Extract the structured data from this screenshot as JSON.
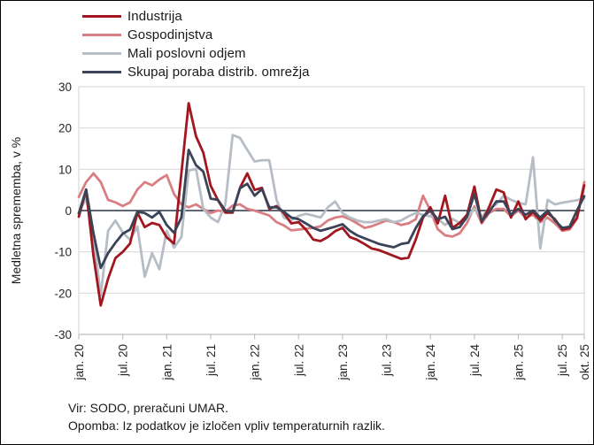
{
  "chart_data": {
    "type": "line",
    "title": "",
    "ylabel": "Medletna sprememba, v %",
    "ylim": [
      -30,
      30
    ],
    "y_ticks": [
      30,
      20,
      10,
      0,
      -10,
      -20,
      -30
    ],
    "grid": true,
    "grid_color": "#d9d9d9",
    "axis_color": "#bfbfbf",
    "zero_line_color": "#474f63",
    "legend_position": "top-left",
    "frequency": "monthly",
    "n_points": 70,
    "x_start_label": "jan. 20",
    "x_end_label": "okt. 25",
    "x_tick_positions": [
      0,
      6,
      12,
      18,
      24,
      30,
      36,
      42,
      48,
      54,
      60,
      66,
      69
    ],
    "x_tick_labels": [
      "jan. 20",
      "jul. 20",
      "jan. 21",
      "jul. 21",
      "jan. 22",
      "jul. 22",
      "jan. 23",
      "jul. 23",
      "jan. 24",
      "jul. 24",
      "jan. 25",
      "jul. 25",
      "okt. 25"
    ],
    "series": [
      {
        "name": "Industrija",
        "color": "#a2161f",
        "values": [
          -1.5,
          5,
          -11,
          -23,
          -16.5,
          -11.5,
          -10,
          -8,
          -0.5,
          -4,
          -3,
          -3.5,
          -6.5,
          -8,
          9,
          26,
          18,
          14,
          6,
          2.5,
          -0.5,
          -0.5,
          5.5,
          9,
          5,
          5.5,
          0.4,
          1.1,
          -0.6,
          -3.1,
          -2.8,
          -4.6,
          -7,
          -7.4,
          -6.4,
          -5,
          -4.2,
          -6.4,
          -7.1,
          -8.1,
          -9.2,
          -9.6,
          -10.3,
          -11,
          -11.7,
          -11.4,
          -7,
          -1.7,
          0.8,
          -3.1,
          3.6,
          -4.2,
          -3,
          -1,
          5.8,
          -2.8,
          0.8,
          5.1,
          4.4,
          -1.7,
          2.2,
          -2.1,
          -0.3,
          -2.4,
          -0.6,
          -2.1,
          -4.6,
          -4.2,
          -1.8,
          6.1
        ]
      },
      {
        "name": "Gospodinjstva",
        "color": "#d97e82",
        "values": [
          3.3,
          6.9,
          9,
          6.9,
          2.6,
          2,
          1.1,
          2,
          5.1,
          6.9,
          6.1,
          7.5,
          8.6,
          4,
          1.5,
          0.8,
          1.5,
          0.4,
          -0.6,
          0,
          -0.3,
          1.2,
          1.5,
          0.4,
          0,
          -0.6,
          -1.2,
          -2.8,
          -3.6,
          -4.8,
          -4.6,
          -4.4,
          -4.2,
          -3.8,
          -2.4,
          -1.7,
          -1.4,
          -2.1,
          -3.1,
          -4.2,
          -3.8,
          -3.1,
          -2.4,
          -2.8,
          -3.5,
          -3.1,
          -2.1,
          3.6,
          0,
          -4.5,
          -6,
          -6.3,
          -5.5,
          -3,
          1,
          -3.1,
          -0.6,
          0.4,
          0.4,
          -1.4,
          0,
          -1.7,
          -1,
          -2.8,
          -1.7,
          -3.1,
          -4.9,
          -4.6,
          -2,
          6.9
        ]
      },
      {
        "name": "Mali poslovni odjem",
        "color": "#b6bdc5",
        "values": [
          -0.5,
          3,
          -6,
          -20.6,
          -4.9,
          -2.4,
          -5.3,
          -7.1,
          -3.9,
          -16,
          -10.3,
          -14.2,
          -4.9,
          -9,
          -6.4,
          9.7,
          10.1,
          0.4,
          -1.7,
          -2.8,
          1.5,
          18.3,
          17.6,
          14.7,
          11.9,
          12.2,
          12.2,
          2.6,
          -1.7,
          -2.4,
          -1.3,
          -0.8,
          -1.2,
          -1.7,
          0.8,
          2.2,
          -0.6,
          -1.7,
          -2.4,
          -2.8,
          -2.8,
          -2.4,
          -2.1,
          -2.8,
          -2.4,
          -1.4,
          -0.6,
          -1,
          -1.4,
          -2,
          -3.5,
          -2,
          -3,
          -2,
          0.5,
          -1.5,
          0.5,
          1.5,
          3.6,
          2.6,
          1.9,
          1.5,
          12.9,
          -9.2,
          2.6,
          1.5,
          1.9,
          2.2,
          2.5,
          3
        ]
      },
      {
        "name": "Skupaj poraba distrib. omrežja",
        "color": "#3b4357",
        "values": [
          -0.7,
          5.1,
          -5.5,
          -13.9,
          -10.3,
          -7.8,
          -5.6,
          -4.6,
          -0.3,
          -0.6,
          -1.7,
          -0.3,
          -3.5,
          -5.4,
          -1.7,
          14.7,
          11,
          9.4,
          2.9,
          2.6,
          0,
          -0.3,
          5.4,
          6.5,
          3.6,
          5.2,
          0.8,
          0.8,
          -0.3,
          -1.7,
          -2.1,
          -3.1,
          -4.2,
          -4.9,
          -4.4,
          -3.9,
          -3.3,
          -4.9,
          -6,
          -6.7,
          -7.4,
          -8.1,
          -8.5,
          -8.9,
          -8.1,
          -7.8,
          -4.2,
          -1.4,
          0,
          -2.1,
          -1.5,
          -4.5,
          -4,
          -1.5,
          4,
          -2.5,
          -0.4,
          2.2,
          2.2,
          -1,
          0.4,
          -1,
          0,
          -1.7,
          0,
          -2.4,
          -4.2,
          -3.9,
          0,
          3.5
        ]
      }
    ]
  },
  "footer": {
    "source": "Vir: SODO, preračuni UMAR.",
    "note": "Opomba: Iz podatkov je izločen vpliv temperaturnih razlik."
  }
}
